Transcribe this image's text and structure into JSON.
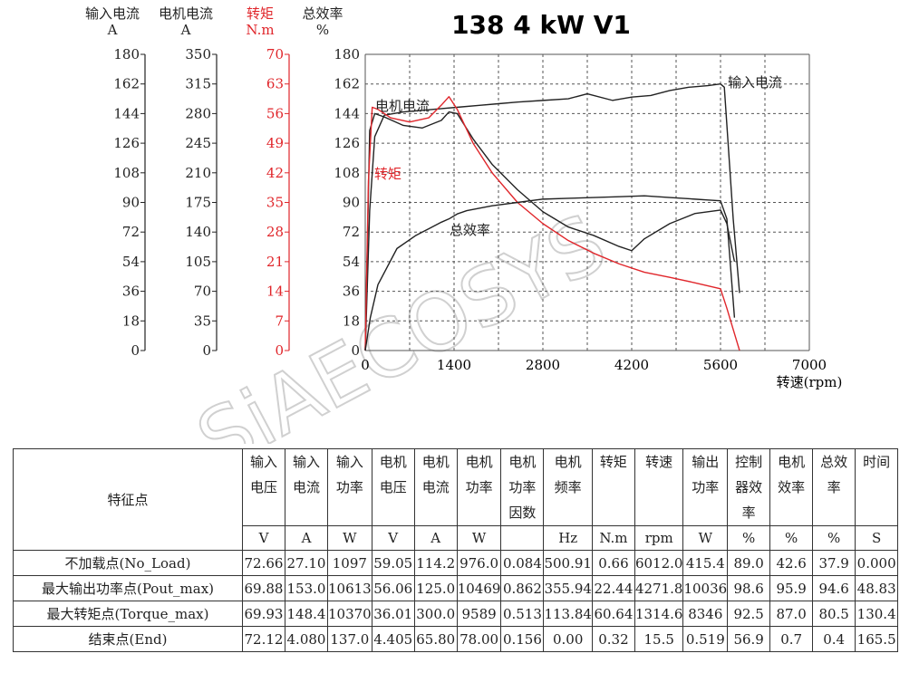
{
  "chart_data": {
    "type": "line",
    "title": "138 4 kW V1",
    "xlabel": "转速(rpm)",
    "xlim": [
      0,
      7000
    ],
    "x_ticks": [
      "0",
      "1400",
      "2800",
      "4200",
      "5600",
      "7000"
    ],
    "grid": true,
    "y_axes": [
      {
        "header": "输入电流",
        "unit": "A",
        "ticks": [
          "180",
          "162",
          "144",
          "126",
          "108",
          "90",
          "72",
          "54",
          "36",
          "18",
          "0"
        ],
        "color": "#222222"
      },
      {
        "header": "电机电流",
        "unit": "A",
        "ticks": [
          "350",
          "315",
          "280",
          "245",
          "210",
          "175",
          "140",
          "105",
          "70",
          "35",
          "0"
        ],
        "color": "#222222"
      },
      {
        "header": "转矩",
        "unit": "N.m",
        "ticks": [
          "70",
          "63",
          "56",
          "49",
          "42",
          "35",
          "28",
          "21",
          "14",
          "7",
          "0"
        ],
        "color": "#e0262b"
      },
      {
        "header": "总效率",
        "unit": "%",
        "ticks": [
          "180",
          "162",
          "144",
          "126",
          "108",
          "90",
          "72",
          "54",
          "36",
          "18",
          "0"
        ],
        "color": "#222222"
      }
    ],
    "series": [
      {
        "name": "输入电流",
        "color": "#222222",
        "x": [
          0,
          70,
          150,
          300,
          600,
          900,
          1200,
          1500,
          1800,
          2100,
          2400,
          2800,
          3200,
          3500,
          3900,
          4200,
          4500,
          4800,
          5100,
          5400,
          5600,
          5660,
          5800,
          5900
        ],
        "y": [
          0,
          85,
          130,
          143,
          145,
          146,
          147,
          148,
          149,
          150,
          151,
          152,
          153,
          156,
          152,
          154,
          155,
          158,
          160,
          161,
          162,
          160,
          80,
          35
        ]
      },
      {
        "name": "电机电流",
        "color": "#222222",
        "x": [
          0,
          70,
          150,
          300,
          600,
          900,
          1200,
          1320,
          1450,
          1700,
          2000,
          2400,
          2800,
          3200,
          3600,
          4000,
          4200,
          4400,
          4800,
          5200,
          5600,
          5700,
          5820
        ],
        "y": [
          0,
          260,
          280,
          276,
          266,
          263,
          272,
          282,
          280,
          250,
          220,
          190,
          164,
          146,
          136,
          123,
          118,
          132,
          150,
          162,
          166,
          150,
          105
        ]
      },
      {
        "name": "转矩",
        "color": "#e0262b",
        "x": [
          0,
          50,
          110,
          200,
          400,
          700,
          1000,
          1200,
          1320,
          1450,
          1700,
          2000,
          2400,
          2800,
          3200,
          3600,
          4000,
          4400,
          4800,
          5200,
          5600,
          5700,
          5800,
          5900
        ],
        "y": [
          0,
          40,
          57.5,
          57,
          55,
          54,
          55,
          58,
          60,
          57,
          49,
          42,
          35,
          30,
          26,
          23,
          20.5,
          18.5,
          17.3,
          16,
          14.6,
          10,
          5,
          0
        ]
      },
      {
        "name": "总效率",
        "color": "#222222",
        "x": [
          0,
          80,
          200,
          500,
          800,
          1000,
          1200,
          1320,
          1450,
          1600,
          2000,
          2400,
          2800,
          3200,
          3600,
          4000,
          4400,
          4800,
          5200,
          5400,
          5600,
          5700,
          5820
        ],
        "y": [
          0,
          20,
          40,
          62,
          70,
          74,
          78,
          80,
          83,
          85,
          88,
          90,
          92,
          92.5,
          93,
          93.5,
          94,
          93,
          92,
          91.5,
          91,
          80,
          20
        ]
      }
    ],
    "annotations": [
      "输入电流",
      "电机电流",
      "转矩",
      "总效率"
    ],
    "watermark": "SiAECOSYS"
  },
  "table": {
    "corner_label": "特征点",
    "headers": [
      [
        "输入",
        "电压"
      ],
      [
        "输入",
        "电流"
      ],
      [
        "输入",
        "功率"
      ],
      [
        "电机",
        "电压"
      ],
      [
        "电机",
        "电流"
      ],
      [
        "电机",
        "功率"
      ],
      [
        "电机",
        "功率",
        "因数"
      ],
      [
        "电机",
        "频率"
      ],
      [
        "转矩"
      ],
      [
        "转速"
      ],
      [
        "输出",
        "功率"
      ],
      [
        "控制",
        "器效",
        "率"
      ],
      [
        "电机",
        "效率"
      ],
      [
        "总效",
        "率"
      ],
      [
        "时间"
      ]
    ],
    "units": [
      "V",
      "A",
      "W",
      "V",
      "A",
      "W",
      "",
      "Hz",
      "N.m",
      "rpm",
      "W",
      "%",
      "%",
      "%",
      "S"
    ],
    "rows": [
      {
        "label": "不加载点(No_Load)",
        "values": [
          "72.66",
          "27.10",
          "1097",
          "59.05",
          "114.2",
          "976.0",
          "0.084",
          "500.91",
          "0.66",
          "6012.0",
          "415.4",
          "89.0",
          "42.6",
          "37.9",
          "0.000"
        ]
      },
      {
        "label": "最大输出功率点(Pout_max)",
        "values": [
          "69.88",
          "153.0",
          "10613",
          "56.06",
          "125.0",
          "10469",
          "0.862",
          "355.94",
          "22.44",
          "4271.8",
          "10036",
          "98.6",
          "95.9",
          "94.6",
          "48.83"
        ]
      },
      {
        "label": "最大转矩点(Torque_max)",
        "values": [
          "69.93",
          "148.4",
          "10370",
          "36.01",
          "300.0",
          "9589",
          "0.513",
          "113.84",
          "60.64",
          "1314.6",
          "8346",
          "92.5",
          "87.0",
          "80.5",
          "130.4"
        ]
      },
      {
        "label": "结束点(End)",
        "values": [
          "72.12",
          "4.080",
          "137.0",
          "4.405",
          "65.80",
          "78.00",
          "0.156",
          "0.00",
          "0.32",
          "15.5",
          "0.519",
          "56.9",
          "0.7",
          "0.4",
          "165.5"
        ]
      }
    ]
  }
}
